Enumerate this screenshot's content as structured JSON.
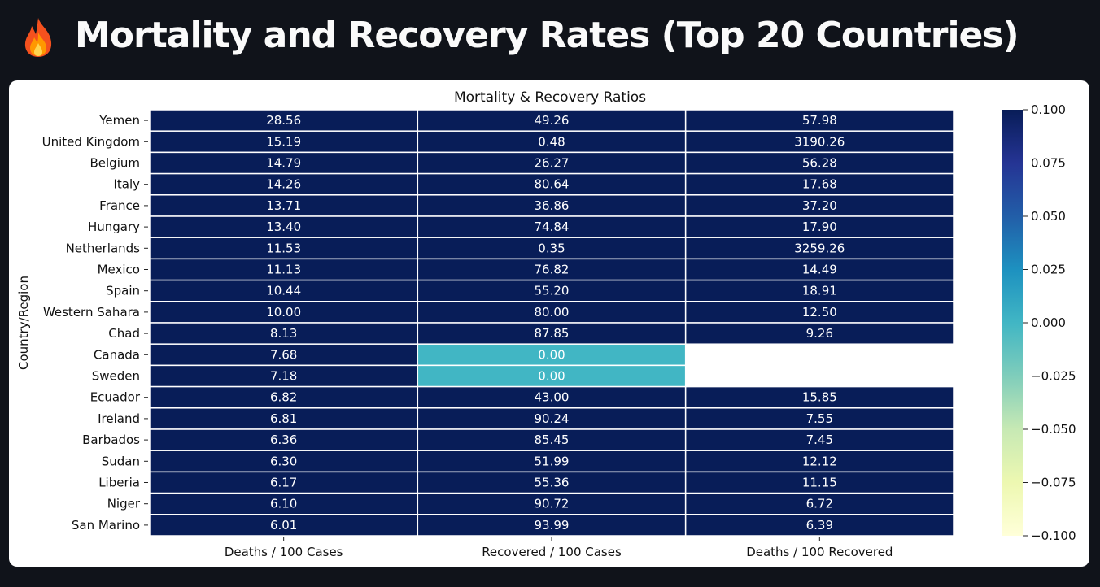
{
  "page": {
    "title": "Mortality and Recovery Rates (Top 20 Countries)",
    "icon": "fire-icon"
  },
  "chart_data": {
    "type": "heatmap",
    "title": "Mortality & Recovery Ratios",
    "xlabel": "",
    "ylabel": "Country/Region",
    "columns": [
      "Deaths / 100 Cases",
      "Recovered / 100 Cases",
      "Deaths / 100 Recovered"
    ],
    "rows": [
      "Yemen",
      "United Kingdom",
      "Belgium",
      "Italy",
      "France",
      "Hungary",
      "Netherlands",
      "Mexico",
      "Spain",
      "Western Sahara",
      "Chad",
      "Canada",
      "Sweden",
      "Ecuador",
      "Ireland",
      "Barbados",
      "Sudan",
      "Liberia",
      "Niger",
      "San Marino"
    ],
    "values": [
      [
        "28.56",
        "49.26",
        "57.98"
      ],
      [
        "15.19",
        "0.48",
        "3190.26"
      ],
      [
        "14.79",
        "26.27",
        "56.28"
      ],
      [
        "14.26",
        "80.64",
        "17.68"
      ],
      [
        "13.71",
        "36.86",
        "37.20"
      ],
      [
        "13.40",
        "74.84",
        "17.90"
      ],
      [
        "11.53",
        "0.35",
        "3259.26"
      ],
      [
        "11.13",
        "76.82",
        "14.49"
      ],
      [
        "10.44",
        "55.20",
        "18.91"
      ],
      [
        "10.00",
        "80.00",
        "12.50"
      ],
      [
        "8.13",
        "87.85",
        "9.26"
      ],
      [
        "7.68",
        "0.00",
        null
      ],
      [
        "7.18",
        "0.00",
        null
      ],
      [
        "6.82",
        "43.00",
        "15.85"
      ],
      [
        "6.81",
        "90.24",
        "7.55"
      ],
      [
        "6.36",
        "85.45",
        "7.45"
      ],
      [
        "6.30",
        "51.99",
        "12.12"
      ],
      [
        "6.17",
        "55.36",
        "11.15"
      ],
      [
        "6.10",
        "90.72",
        "6.72"
      ],
      [
        "6.01",
        "93.99",
        "6.39"
      ]
    ],
    "colorbar": {
      "colormap": "YlGnBu",
      "vmin": -0.1,
      "vmax": 0.1,
      "ticks": [
        "0.100",
        "0.075",
        "0.050",
        "0.025",
        "0.000",
        "−0.025",
        "−0.050",
        "−0.075",
        "−0.100"
      ]
    },
    "colors": {
      "high": "#081d58",
      "zero": "#41b6c4",
      "low": "#ffffd9",
      "missing": "#ffffff"
    },
    "grid": false,
    "legend": "right"
  }
}
